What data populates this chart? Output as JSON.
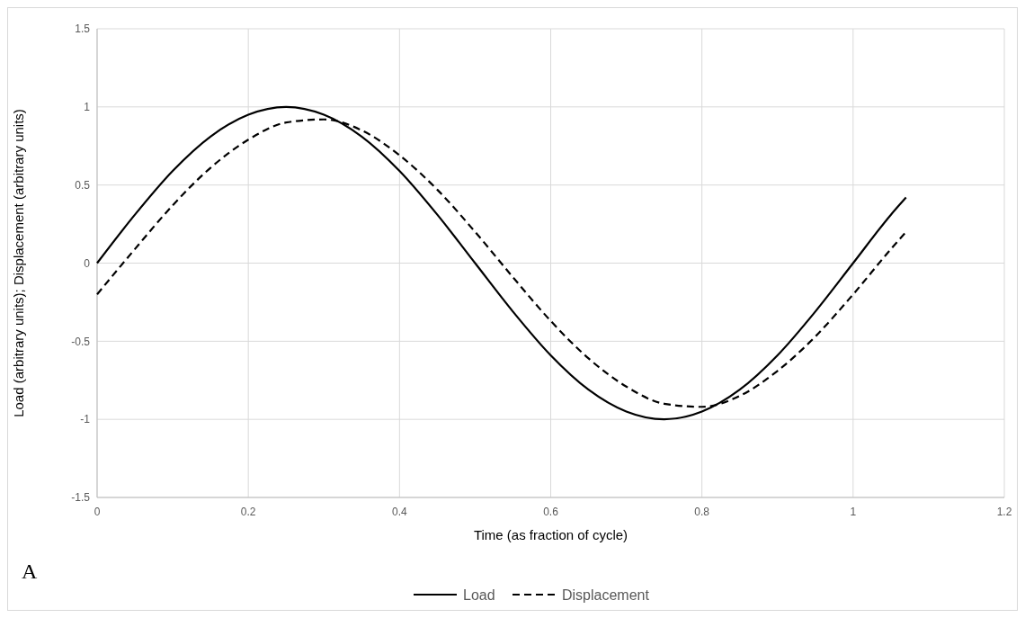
{
  "chart_data": {
    "type": "line",
    "xlabel": "Time (as fraction of cycle)",
    "ylabel": "Load (arbitrary units); Displacement (arbitrary units)",
    "x": [
      0,
      0.05,
      0.1,
      0.15,
      0.2,
      0.25,
      0.3,
      0.35,
      0.4,
      0.45,
      0.5,
      0.55,
      0.6,
      0.65,
      0.7,
      0.75,
      0.8,
      0.85,
      0.9,
      0.95,
      1.0,
      1.05,
      1.07
    ],
    "series": [
      {
        "name": "Load",
        "color": "#000000",
        "line_style": "solid",
        "values": [
          0,
          0.31,
          0.59,
          0.81,
          0.95,
          1,
          0.95,
          0.81,
          0.59,
          0.31,
          0,
          -0.31,
          -0.59,
          -0.81,
          -0.95,
          -1,
          -0.95,
          -0.81,
          -0.59,
          -0.31,
          0,
          0.31,
          0.42
        ]
      },
      {
        "name": "Displacement",
        "color": "#000000",
        "line_style": "dashed",
        "values": [
          -0.2,
          0.09,
          0.37,
          0.61,
          0.79,
          0.9,
          0.92,
          0.85,
          0.69,
          0.47,
          0.2,
          -0.09,
          -0.37,
          -0.61,
          -0.79,
          -0.9,
          -0.92,
          -0.85,
          -0.69,
          -0.47,
          -0.2,
          0.09,
          0.2
        ]
      }
    ],
    "xlim": [
      0,
      1.2
    ],
    "xticks": [
      0,
      0.2,
      0.4,
      0.6,
      0.8,
      1,
      1.2
    ],
    "ylim": [
      -1.5,
      1.5
    ],
    "yticks": [
      -1.5,
      -1,
      -0.5,
      0,
      0.5,
      1,
      1.5
    ],
    "grid": true,
    "legend": "bottom",
    "annotations": [
      "A"
    ]
  }
}
